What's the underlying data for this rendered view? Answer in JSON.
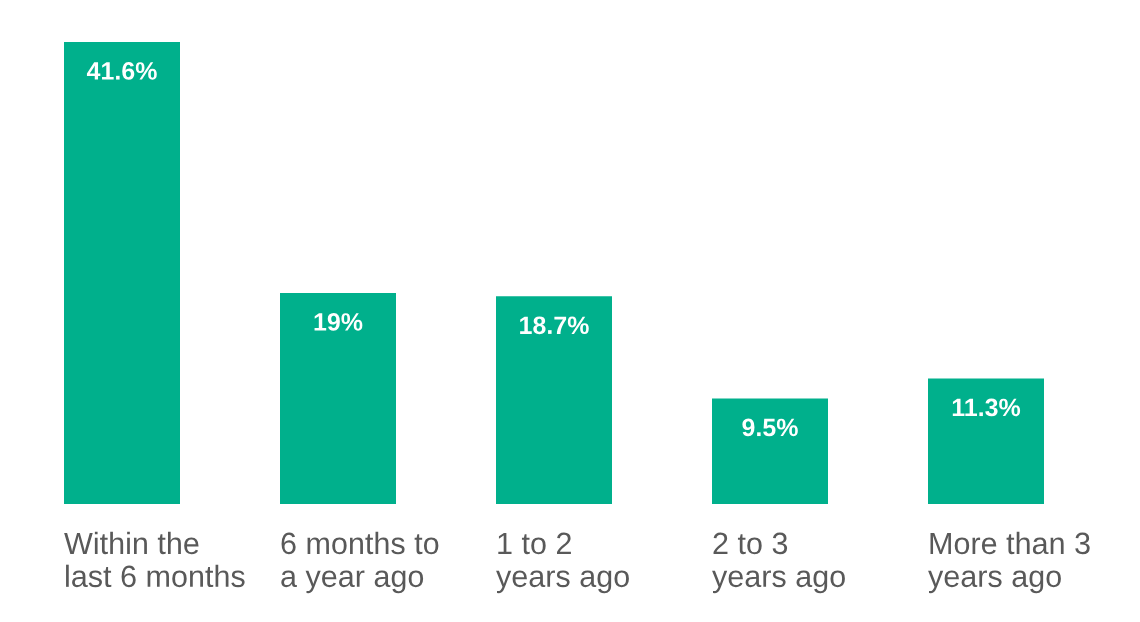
{
  "chart_data": {
    "type": "bar",
    "categories": [
      "Within the\nlast 6 months",
      "6 months to\na year ago",
      "1 to 2\nyears ago",
      "2 to 3\nyears ago",
      "More than 3\nyears ago"
    ],
    "values": [
      41.6,
      19,
      18.7,
      9.5,
      11.3
    ],
    "value_labels": [
      "41.6%",
      "19%",
      "18.7%",
      "9.5%",
      "11.3%"
    ],
    "color": "#00b08c",
    "grid": false,
    "legend": false
  }
}
